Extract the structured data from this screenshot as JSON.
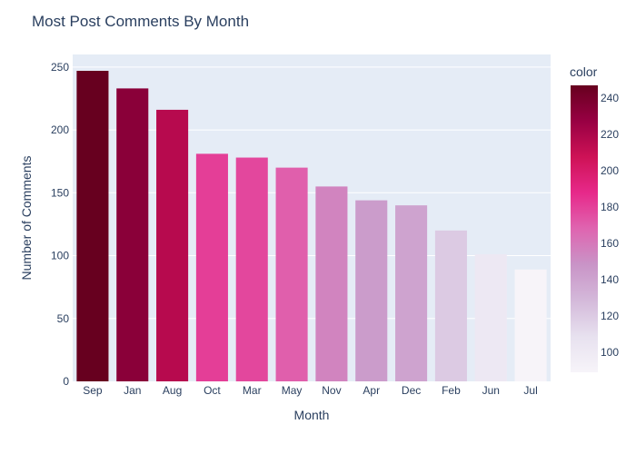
{
  "chart_data": {
    "type": "bar",
    "title": "Most Post Comments By Month",
    "xlabel": "Month",
    "ylabel": "Number of Comments",
    "categories": [
      "Sep",
      "Jan",
      "Aug",
      "Oct",
      "Mar",
      "May",
      "Nov",
      "Apr",
      "Dec",
      "Feb",
      "Jun",
      "Jul"
    ],
    "values": [
      247,
      233,
      216,
      181,
      178,
      170,
      155,
      144,
      140,
      120,
      101,
      89
    ],
    "ylim": [
      0,
      260
    ],
    "yticks": [
      "0",
      "50",
      "100",
      "150",
      "200",
      "250"
    ],
    "grid": true,
    "colorbar": {
      "title": "color",
      "range": [
        89,
        247
      ],
      "ticks": [
        "100",
        "120",
        "140",
        "160",
        "180",
        "200",
        "220",
        "240"
      ],
      "colorscale": [
        "#f7f4f9",
        "#e7e1ef",
        "#d4b9da",
        "#c994c7",
        "#df65b0",
        "#e7298a",
        "#ce1256",
        "#980043",
        "#67001f"
      ]
    },
    "colors": {
      "plot_bg": "#e5ecf6",
      "grid": "#ffffff",
      "text": "#2a3f5f"
    }
  }
}
